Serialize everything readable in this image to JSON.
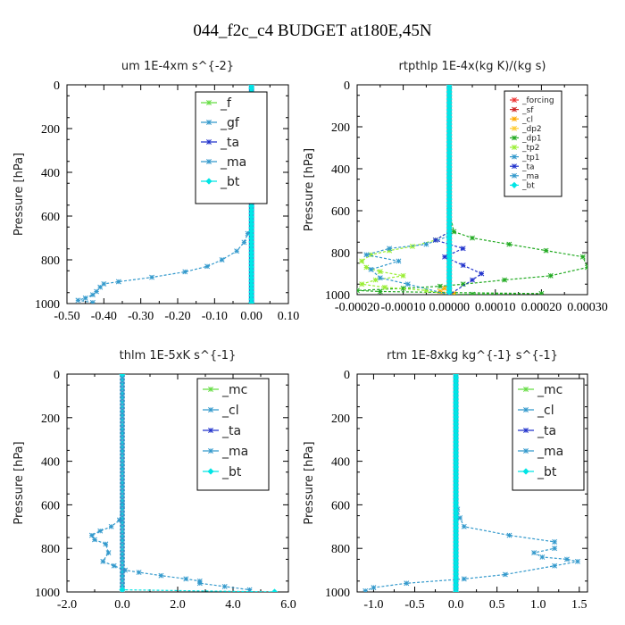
{
  "figure_title": "044_f2c_c4  BUDGET at180E,45N",
  "chart_data": [
    {
      "type": "line",
      "title": "um   1E-4xm s^{-2}",
      "ylabel": "Pressure [hPa]",
      "xlabel": "",
      "xlim": [
        -0.5,
        0.1
      ],
      "ylim": [
        1000,
        0
      ],
      "xticks": [
        "-0.50",
        "-0.40",
        "-0.30",
        "-0.20",
        "-0.10",
        "0.00",
        "0.10"
      ],
      "xtick_values": [
        -0.5,
        -0.4,
        -0.3,
        -0.2,
        -0.1,
        0.0,
        0.1
      ],
      "yticks": [
        "0",
        "200",
        "400",
        "600",
        "800",
        "1000"
      ],
      "ytick_values": [
        0,
        200,
        400,
        600,
        800,
        1000
      ],
      "legend": {
        "placement": "top-right",
        "size": "large",
        "entries": [
          "_f",
          "_gf",
          "_ta",
          "_ma",
          "_bt"
        ]
      },
      "series": [
        {
          "name": "_f",
          "color": "#66dd44",
          "x": [
            0.0,
            0.0
          ],
          "y": [
            0,
            1000
          ]
        },
        {
          "name": "_gf",
          "color": "#3399cc",
          "x": [
            0.0,
            0.0
          ],
          "y": [
            0,
            1000
          ]
        },
        {
          "name": "_ta",
          "color": "#2233cc",
          "x": [
            0.0,
            0.0
          ],
          "y": [
            0,
            1000
          ]
        },
        {
          "name": "_ma",
          "color": "#3399cc",
          "x": [
            0.0,
            0.0,
            0.0,
            0.0,
            -0.01,
            -0.02,
            -0.04,
            -0.08,
            -0.12,
            -0.18,
            -0.27,
            -0.36,
            -0.4,
            -0.41,
            -0.42,
            -0.43,
            -0.45,
            -0.47,
            -0.43
          ],
          "y": [
            0,
            400,
            550,
            650,
            680,
            720,
            760,
            800,
            830,
            855,
            880,
            900,
            910,
            925,
            945,
            960,
            975,
            985,
            995
          ]
        },
        {
          "name": "_bt",
          "color": "#00e5e5",
          "x": [
            0.0,
            0.0
          ],
          "y": [
            0,
            1000
          ]
        }
      ]
    },
    {
      "type": "line",
      "title": "rtpthlp   1E-4x(kg K)/(kg s)",
      "ylabel": "Pressure [hPa]",
      "xlabel": "",
      "xlim": [
        -0.0002,
        0.0003
      ],
      "ylim": [
        1000,
        0
      ],
      "xticks": [
        "-0.00020",
        "-0.00010",
        "0.00000",
        "0.00010",
        "0.00020",
        "0.00030"
      ],
      "xtick_values": [
        -0.0002,
        -0.0001,
        0.0,
        0.0001,
        0.0002,
        0.0003
      ],
      "yticks": [
        "0",
        "200",
        "400",
        "600",
        "800",
        "1000"
      ],
      "ytick_values": [
        0,
        200,
        400,
        600,
        800,
        1000
      ],
      "legend": {
        "placement": "top-right",
        "size": "small",
        "entries": [
          "_forcing",
          "_sf",
          "_cl",
          "_dp2",
          "_dp1",
          "_tp2",
          "_tp1",
          "_ta",
          "_ma",
          "_bt"
        ]
      },
      "series": [
        {
          "name": "_forcing",
          "color": "#ee3333",
          "x": [
            0.0,
            0.0
          ],
          "y": [
            0,
            1000
          ]
        },
        {
          "name": "_sf",
          "color": "#cc2222",
          "x": [
            0.0,
            0.0
          ],
          "y": [
            0,
            1000
          ]
        },
        {
          "name": "_cl",
          "color": "#ffaa00",
          "x": [
            0.0,
            0.0,
            -1e-05,
            -2e-05,
            1e-05,
            0.0
          ],
          "y": [
            0,
            950,
            970,
            985,
            995,
            1000
          ]
        },
        {
          "name": "_dp2",
          "color": "#ffcc33",
          "x": [
            0.0,
            0.0
          ],
          "y": [
            0,
            1000
          ]
        },
        {
          "name": "_dp1",
          "color": "#22aa22",
          "x": [
            0.0,
            0.0,
            1e-05,
            5e-05,
            0.00013,
            0.00021,
            0.00029,
            0.0003,
            0.00022,
            0.00012,
            3e-05,
            -2e-05,
            -0.0001,
            -0.0002,
            -0.00015,
            0.0,
            0.0002,
            5e-05,
            0.0
          ],
          "y": [
            0,
            600,
            700,
            730,
            760,
            790,
            820,
            870,
            910,
            930,
            950,
            960,
            970,
            980,
            985,
            990,
            995,
            998,
            1000
          ]
        },
        {
          "name": "_tp2",
          "color": "#99ee33",
          "x": [
            0.0,
            0.0,
            -3e-05,
            -8e-05,
            -0.00013,
            -0.00017,
            -0.00019,
            -0.00018,
            -0.00015,
            -0.0001,
            -0.00016,
            -0.00019,
            -0.00014,
            -5e-05,
            0.0
          ],
          "y": [
            0,
            700,
            740,
            770,
            790,
            810,
            840,
            870,
            890,
            910,
            930,
            950,
            965,
            980,
            1000
          ]
        },
        {
          "name": "_tp1",
          "color": "#3399cc",
          "x": [
            0.0,
            0.0,
            -5e-05,
            -0.00013,
            -0.00018,
            -0.00011,
            -0.00017,
            -0.00015,
            -9e-05,
            0.0
          ],
          "y": [
            0,
            720,
            760,
            780,
            810,
            840,
            880,
            920,
            950,
            1000
          ]
        },
        {
          "name": "_ta",
          "color": "#2233cc",
          "x": [
            0.0,
            0.0,
            -3e-05,
            3e-05,
            -1e-05,
            3e-05,
            7e-05,
            5e-05,
            0.0
          ],
          "y": [
            0,
            700,
            740,
            780,
            820,
            860,
            900,
            930,
            1000
          ]
        },
        {
          "name": "_ma",
          "color": "#3399cc",
          "x": [
            0.0,
            0.0
          ],
          "y": [
            0,
            1000
          ]
        },
        {
          "name": "_bt",
          "color": "#00e5e5",
          "x": [
            0.0,
            0.0
          ],
          "y": [
            0,
            1000
          ]
        }
      ]
    },
    {
      "type": "line",
      "title": "thlm   1E-5xK s^{-1}",
      "ylabel": "Pressure [hPa]",
      "xlabel": "",
      "xlim": [
        -2.0,
        6.0
      ],
      "ylim": [
        1000,
        0
      ],
      "xticks": [
        "-2.0",
        "0.0",
        "2.0",
        "4.0",
        "6.0"
      ],
      "xtick_values": [
        -2.0,
        0.0,
        2.0,
        4.0,
        6.0
      ],
      "yticks": [
        "0",
        "200",
        "400",
        "600",
        "800",
        "1000"
      ],
      "ytick_values": [
        0,
        200,
        400,
        600,
        800,
        1000
      ],
      "legend": {
        "placement": "top-right",
        "size": "large",
        "entries": [
          "_mc",
          "_cl",
          "_ta",
          "_ma",
          "_bt"
        ]
      },
      "series": [
        {
          "name": "_mc",
          "color": "#66dd44",
          "x": [
            0.0,
            0.0
          ],
          "y": [
            0,
            1000
          ]
        },
        {
          "name": "_cl",
          "color": "#3399cc",
          "x": [
            0.0,
            0.0,
            -0.1,
            -0.4,
            -0.8,
            -1.1,
            -1.0,
            -0.6,
            -0.5,
            -0.7,
            -0.3,
            0.1,
            0.6,
            1.4,
            2.3,
            2.8,
            2.8,
            3.7,
            4.6
          ],
          "y": [
            0,
            600,
            670,
            700,
            720,
            740,
            760,
            780,
            820,
            860,
            880,
            900,
            910,
            925,
            940,
            950,
            960,
            975,
            990
          ]
        },
        {
          "name": "_ta",
          "color": "#2233cc",
          "x": [
            0.0,
            0.0
          ],
          "y": [
            0,
            1000
          ]
        },
        {
          "name": "_ma",
          "color": "#3399cc",
          "x": [
            0.0,
            0.0
          ],
          "y": [
            0,
            1000
          ]
        },
        {
          "name": "_bt",
          "color": "#00e5e5",
          "x": [
            0.0,
            0.0,
            5.5
          ],
          "y": [
            0,
            990,
            1000
          ]
        }
      ]
    },
    {
      "type": "line",
      "title": "rtm   1E-8xkg kg^{-1} s^{-1}",
      "ylabel": "Pressure [hPa]",
      "xlabel": "",
      "xlim": [
        -1.2,
        1.6
      ],
      "ylim": [
        1000,
        0
      ],
      "xticks": [
        "-1.0",
        "-0.5",
        "0.0",
        "0.5",
        "1.0",
        "1.5"
      ],
      "xtick_values": [
        -1.0,
        -0.5,
        0.0,
        0.5,
        1.0,
        1.5
      ],
      "yticks": [
        "0",
        "200",
        "400",
        "600",
        "800",
        "1000"
      ],
      "ytick_values": [
        0,
        200,
        400,
        600,
        800,
        1000
      ],
      "legend": {
        "placement": "top-right",
        "size": "large",
        "entries": [
          "_mc",
          "_cl",
          "_ta",
          "_ma",
          "_bt"
        ]
      },
      "series": [
        {
          "name": "_mc",
          "color": "#66dd44",
          "x": [
            0.0,
            0.0
          ],
          "y": [
            0,
            1000
          ]
        },
        {
          "name": "_cl",
          "color": "#3399cc",
          "x": [
            0.0,
            0.0,
            0.02,
            0.05,
            0.1,
            0.65,
            1.2,
            1.2,
            0.95,
            1.05,
            1.35,
            1.48,
            1.2,
            0.6,
            0.1,
            -0.6,
            -1.0,
            -1.1
          ],
          "y": [
            0,
            580,
            620,
            660,
            700,
            740,
            770,
            800,
            820,
            840,
            850,
            860,
            880,
            920,
            940,
            960,
            980,
            995
          ]
        },
        {
          "name": "_ta",
          "color": "#2233cc",
          "x": [
            0.0,
            0.0
          ],
          "y": [
            0,
            1000
          ]
        },
        {
          "name": "_ma",
          "color": "#3399cc",
          "x": [
            0.0,
            0.0
          ],
          "y": [
            0,
            1000
          ]
        },
        {
          "name": "_bt",
          "color": "#00e5e5",
          "x": [
            0.0,
            0.0
          ],
          "y": [
            0,
            1000
          ]
        }
      ]
    }
  ]
}
